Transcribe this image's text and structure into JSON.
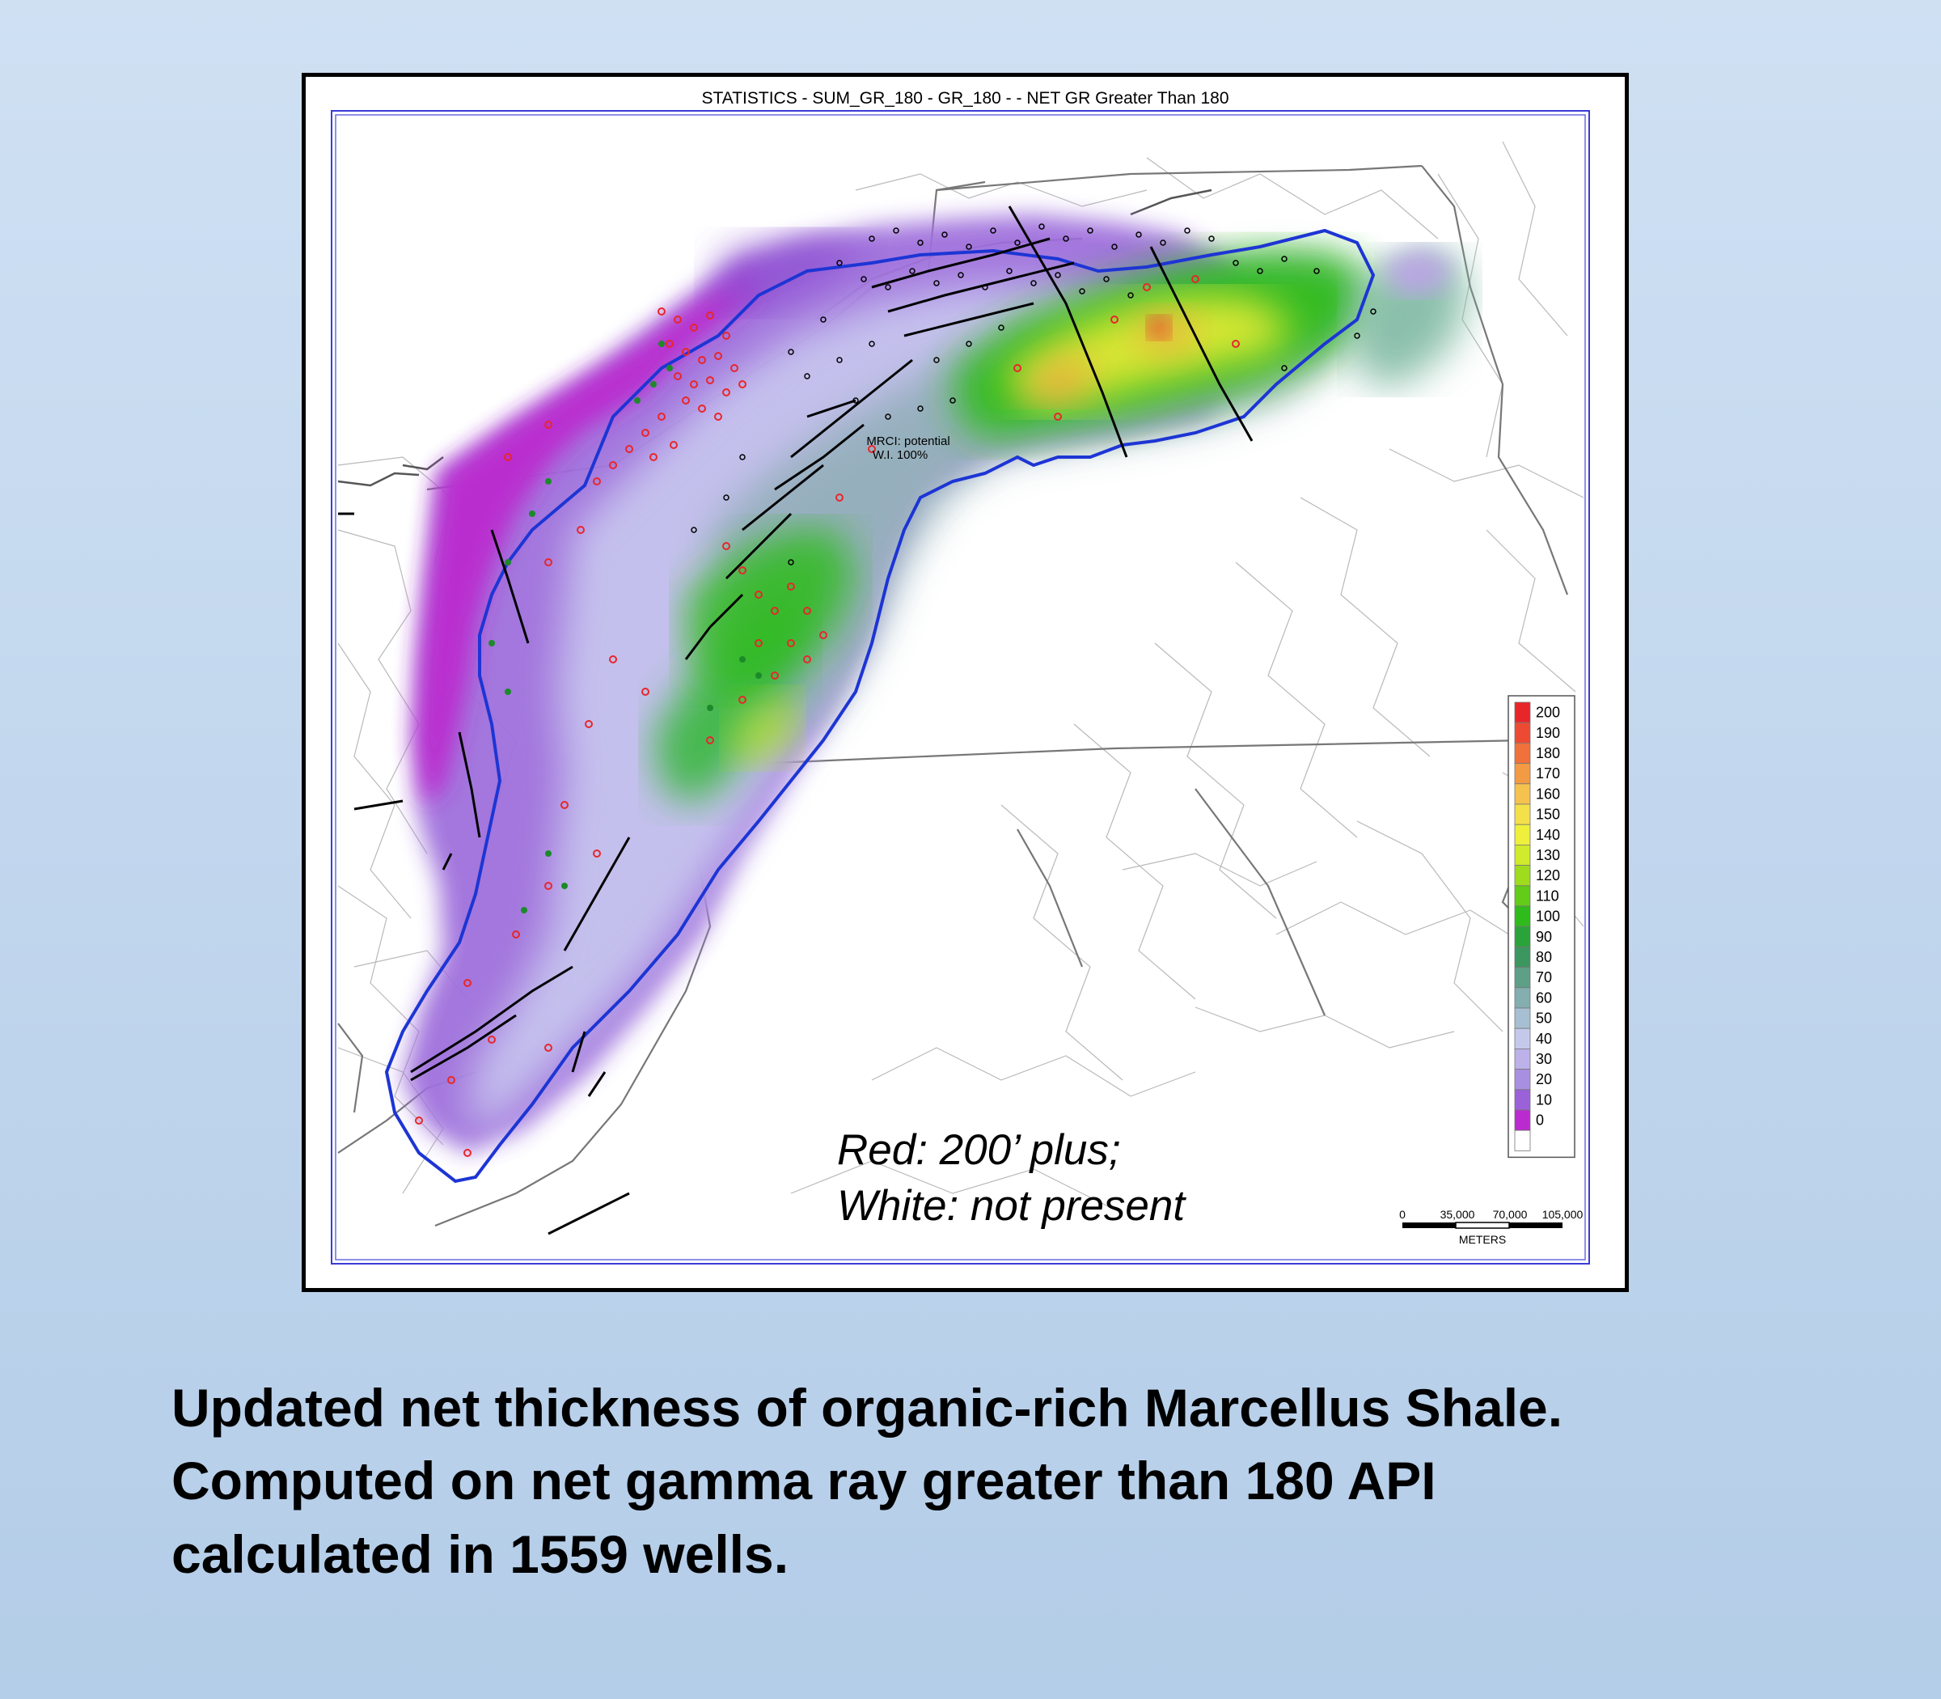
{
  "map": {
    "title": "STATISTICS - SUM_GR_180 - GR_180 - - NET GR Greater Than 180",
    "inner_label_line1": "MRCI: potential",
    "inner_label_line2": "W.I. 100%",
    "annotation_line1": "Red: 200’ plus;",
    "annotation_line2": "White: not present",
    "scale_ticks": [
      "0",
      "35,000",
      "70,000",
      "105,000"
    ],
    "scale_unit": "METERS",
    "legend": [
      {
        "label": "200",
        "color": "#e8262a"
      },
      {
        "label": "190",
        "color": "#ec4a33"
      },
      {
        "label": "180",
        "color": "#f0713b"
      },
      {
        "label": "170",
        "color": "#f39a45"
      },
      {
        "label": "160",
        "color": "#f6c24f"
      },
      {
        "label": "150",
        "color": "#f4e04a"
      },
      {
        "label": "140",
        "color": "#eef03c"
      },
      {
        "label": "130",
        "color": "#d0ea2c"
      },
      {
        "label": "120",
        "color": "#9fdc1e"
      },
      {
        "label": "110",
        "color": "#62cc18"
      },
      {
        "label": "100",
        "color": "#2fbb1c"
      },
      {
        "label": "90",
        "color": "#2aa33a"
      },
      {
        "label": "80",
        "color": "#3b9660"
      },
      {
        "label": "70",
        "color": "#5e9f88"
      },
      {
        "label": "60",
        "color": "#84aeb0"
      },
      {
        "label": "50",
        "color": "#a6bfd2"
      },
      {
        "label": "40",
        "color": "#c4c9ec"
      },
      {
        "label": "30",
        "color": "#bdb1ea"
      },
      {
        "label": "20",
        "color": "#a98fe0"
      },
      {
        "label": "10",
        "color": "#9b61d8"
      },
      {
        "label": "0",
        "color": "#bb2acf"
      },
      {
        "label": "",
        "color": "#ffffff"
      }
    ]
  },
  "caption": {
    "line1": "Updated net thickness of organic-rich Marcellus Shale.",
    "line2": "Computed on net gamma ray greater than 180 API",
    "line3": "calculated in 1559 wells."
  }
}
